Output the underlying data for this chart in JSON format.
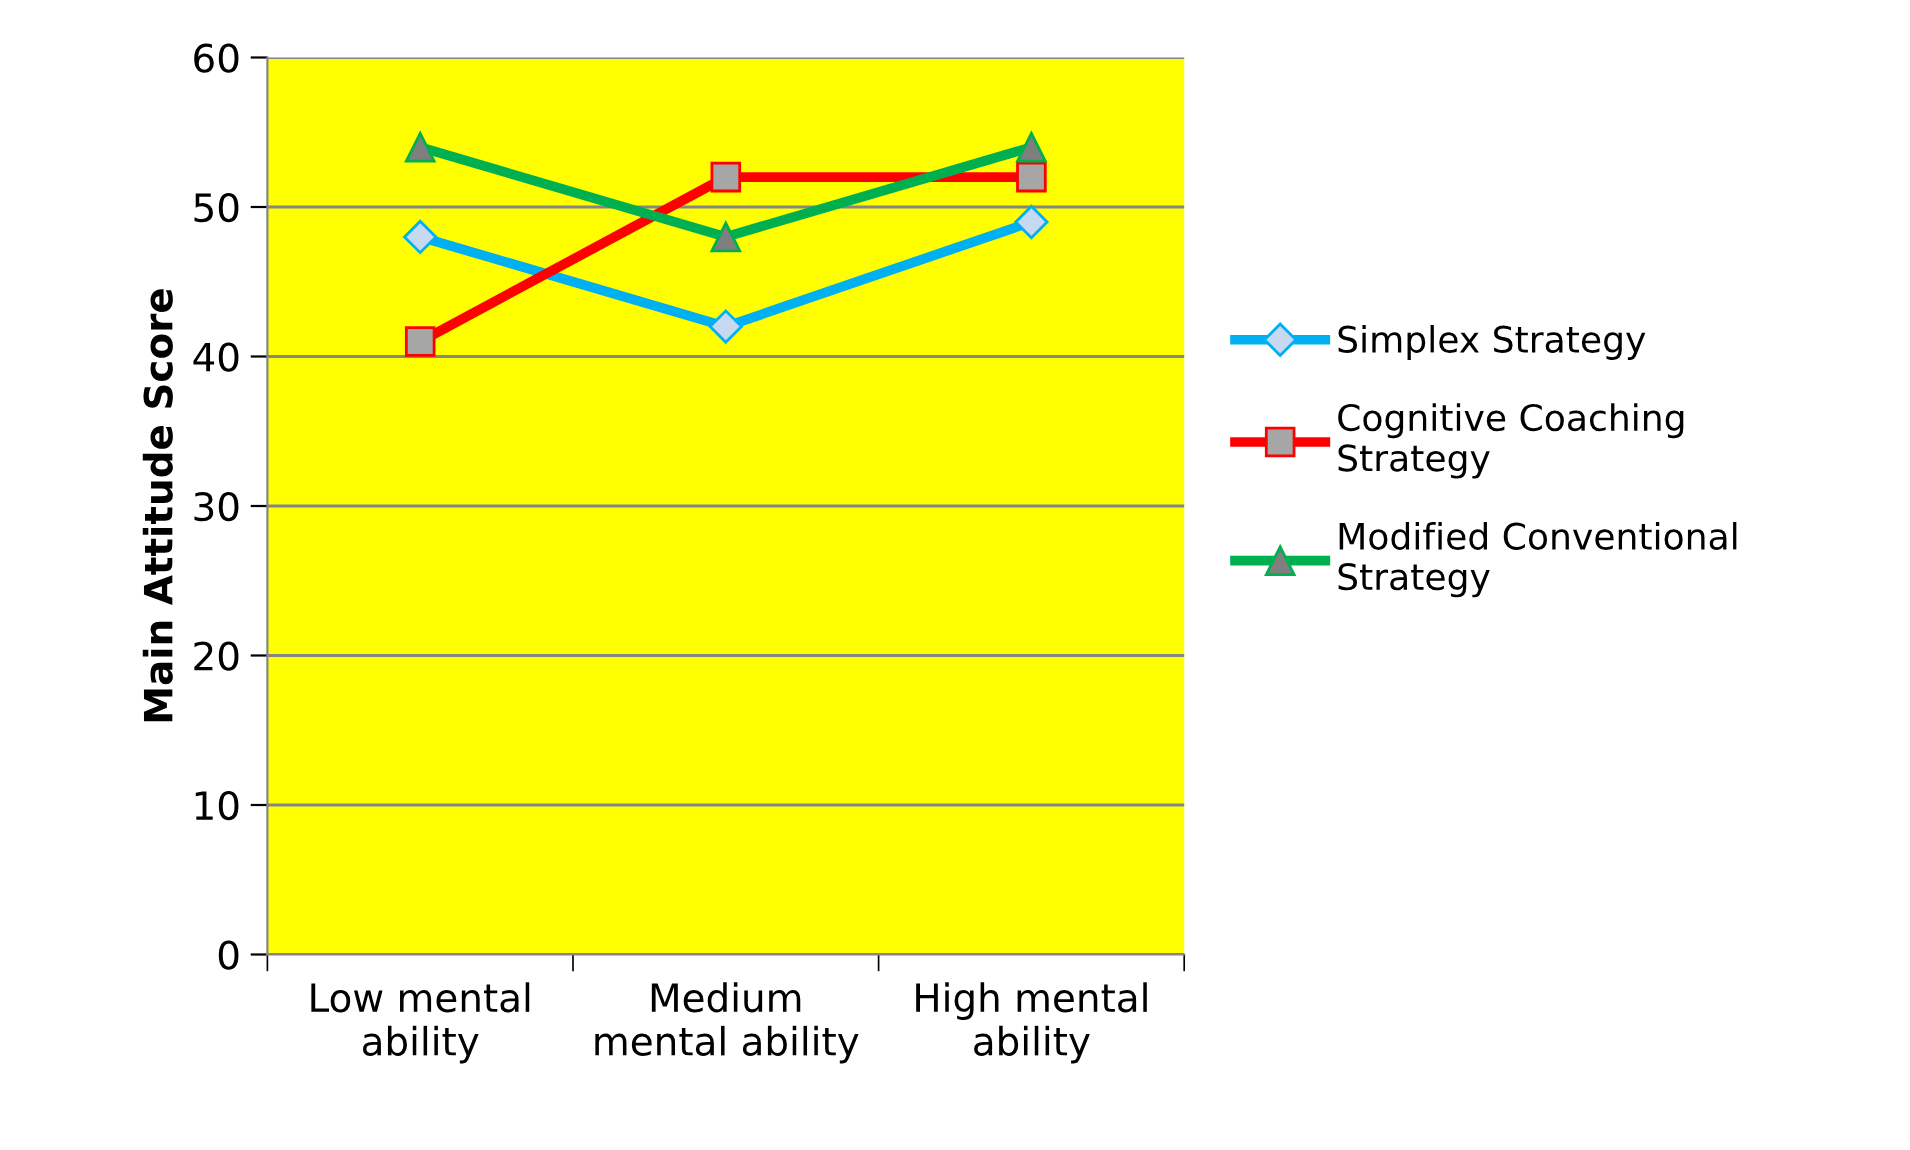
{
  "chart_data": {
    "type": "line",
    "ylabel": "Main Attitude Score",
    "categories": [
      "Low mental\nability",
      "Medium\nmental ability",
      "High mental\nability"
    ],
    "series": [
      {
        "name": "Simplex Strategy",
        "color": "#00b0f0",
        "marker": "diamond",
        "values": [
          48,
          42,
          49
        ]
      },
      {
        "name": "Cognitive Coaching\nStrategy",
        "color": "#ff0000",
        "marker": "square",
        "values": [
          41,
          52,
          52
        ]
      },
      {
        "name": "Modified Conventional\nStrategy",
        "color": "#00b050",
        "marker": "triangle",
        "values": [
          54,
          48,
          54
        ]
      }
    ],
    "ylim": [
      0,
      60
    ],
    "yticks": [
      0,
      10,
      20,
      30,
      40,
      50,
      60
    ],
    "grid": "y",
    "legend": "right",
    "line_style": "solid"
  }
}
